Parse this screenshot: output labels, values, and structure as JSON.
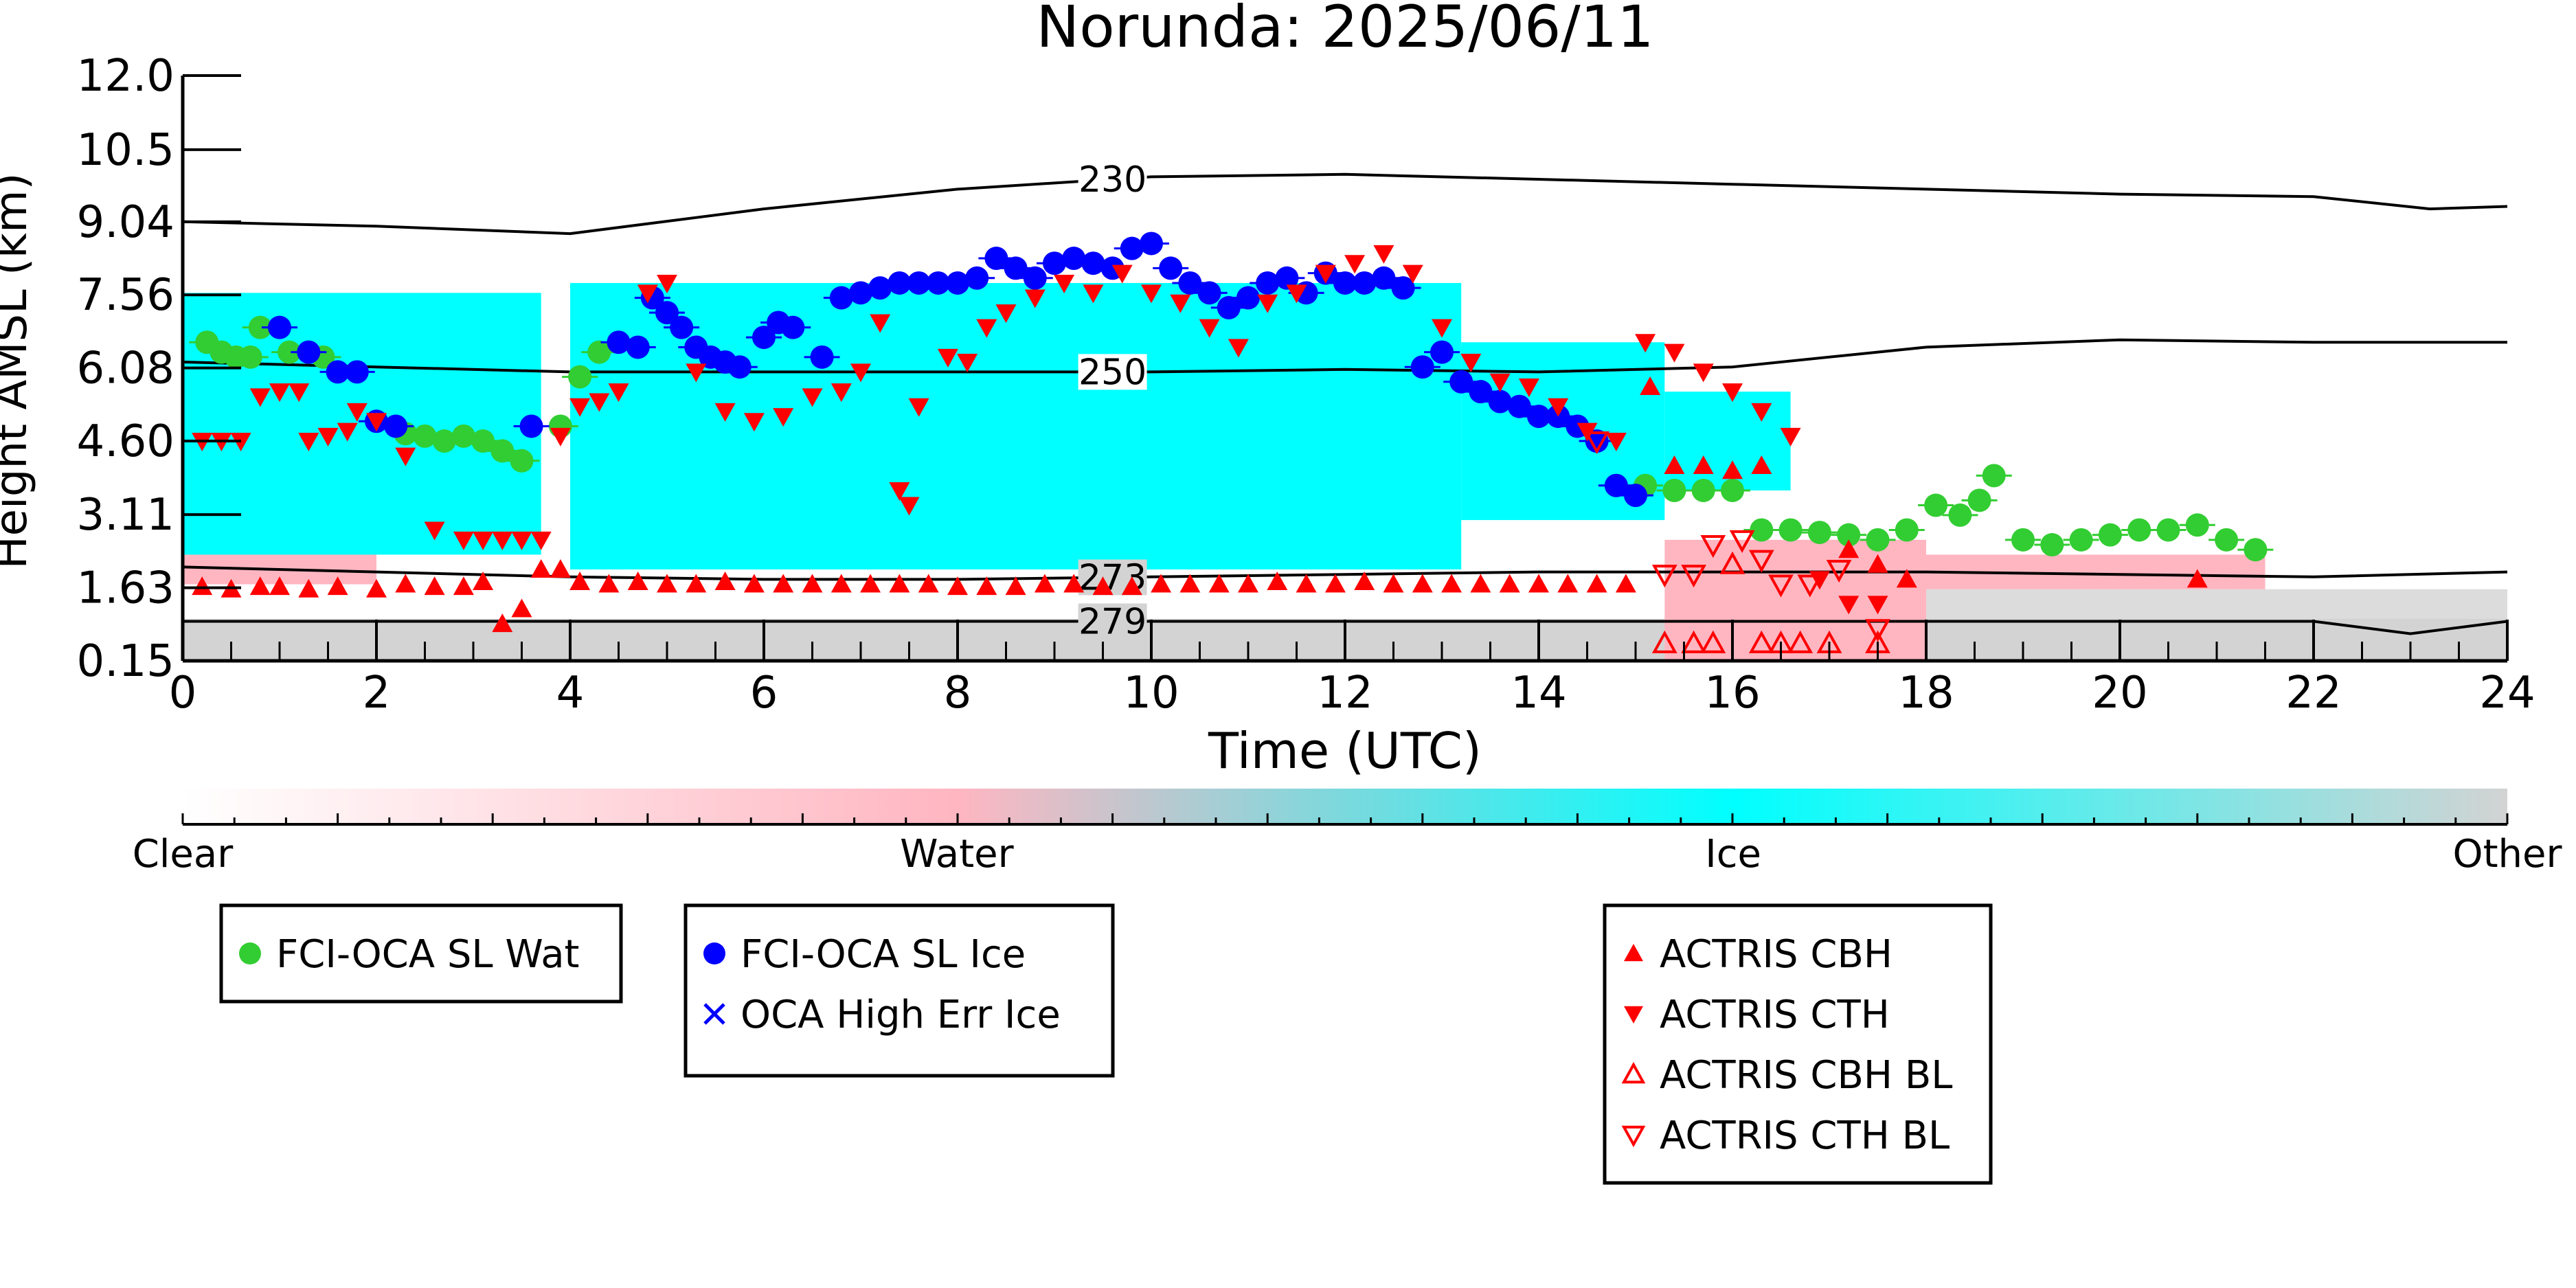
{
  "chart_data": {
    "type": "scatter",
    "title": "Norunda: 2025/06/11",
    "xlabel": "Time (UTC)",
    "ylabel": "Height AMSL (km)",
    "xlim": [
      0,
      24
    ],
    "ylim": [
      0.15,
      12.0
    ],
    "x_ticks": [
      "0",
      "2",
      "4",
      "6",
      "8",
      "10",
      "12",
      "14",
      "16",
      "18",
      "20",
      "22",
      "24"
    ],
    "y_ticks": [
      "0.15",
      "1.63",
      "3.11",
      "4.60",
      "6.08",
      "7.56",
      "9.04",
      "10.5",
      "12.0"
    ],
    "grid": false,
    "background": {
      "description_free": true,
      "ground_top_km": 1.0,
      "ice_segments": [
        {
          "x0": 0.0,
          "x1": 3.7,
          "bottom": 2.3,
          "top": 7.6
        },
        {
          "x0": 4.0,
          "x1": 13.2,
          "bottom": 2.0,
          "top": 7.8
        },
        {
          "x0": 13.2,
          "x1": 15.3,
          "bottom": 3.0,
          "top": 6.6
        },
        {
          "x0": 15.3,
          "x1": 16.6,
          "bottom": 3.6,
          "top": 5.6
        }
      ],
      "water_segments": [
        {
          "x0": 0.0,
          "x1": 2.0,
          "bottom": 1.7,
          "top": 3.1
        },
        {
          "x0": 15.3,
          "x1": 18.0,
          "bottom": 0.15,
          "top": 2.6
        },
        {
          "x0": 18.0,
          "x1": 21.5,
          "bottom": 1.6,
          "top": 2.3
        }
      ],
      "other_segments": [
        {
          "x0": 18.0,
          "x1": 24.0,
          "bottom": 0.9,
          "top": 1.6
        }
      ]
    },
    "isotherms": [
      {
        "label": "230",
        "label_x": 9.6,
        "x": [
          0,
          2,
          4,
          6,
          8,
          10,
          12,
          14,
          16,
          18,
          20,
          22,
          23.2,
          24
        ],
        "y": [
          9.04,
          8.95,
          8.8,
          9.3,
          9.7,
          9.95,
          10.0,
          9.9,
          9.8,
          9.7,
          9.6,
          9.55,
          9.3,
          9.35
        ]
      },
      {
        "label": "250",
        "label_x": 9.6,
        "x": [
          0,
          2,
          4,
          6,
          8,
          10,
          12,
          14,
          16,
          18,
          20,
          22,
          24
        ],
        "y": [
          6.2,
          6.1,
          6.0,
          6.0,
          6.0,
          6.0,
          6.05,
          6.0,
          6.1,
          6.5,
          6.65,
          6.6,
          6.6
        ]
      },
      {
        "label": "273",
        "label_x": 9.6,
        "x": [
          0,
          2,
          4,
          6,
          8,
          10,
          12,
          14,
          16,
          18,
          20,
          22,
          24
        ],
        "y": [
          2.05,
          1.95,
          1.85,
          1.8,
          1.8,
          1.85,
          1.9,
          1.95,
          1.95,
          1.95,
          1.9,
          1.85,
          1.95
        ]
      },
      {
        "label": "279",
        "label_x": 9.6,
        "x": [
          0,
          2,
          4,
          6,
          8,
          10,
          12,
          14,
          16,
          18,
          20,
          22,
          23,
          24
        ],
        "y": [
          0.95,
          0.95,
          0.95,
          0.95,
          0.95,
          0.95,
          0.95,
          0.95,
          0.95,
          0.95,
          0.95,
          0.95,
          0.7,
          0.95
        ]
      }
    ],
    "series": [
      {
        "name": "FCI-OCA SL Wat",
        "marker": "circle",
        "color": "#32cd32",
        "x": [
          0.25,
          0.4,
          0.55,
          0.7,
          0.8,
          1.1,
          1.3,
          1.45,
          2.3,
          2.5,
          2.7,
          2.9,
          3.1,
          3.3,
          3.5,
          3.9,
          4.1,
          4.3,
          14.8,
          15.1,
          15.4,
          15.7,
          16.0,
          16.3,
          16.6,
          16.9,
          17.2,
          17.5,
          17.8,
          18.1,
          18.35,
          18.55,
          18.7,
          19.0,
          19.3,
          19.6,
          19.9,
          20.2,
          20.5,
          20.8,
          21.1,
          21.4
        ],
        "y": [
          6.6,
          6.4,
          6.3,
          6.3,
          6.9,
          6.4,
          6.4,
          6.3,
          4.75,
          4.7,
          4.6,
          4.7,
          4.6,
          4.4,
          4.2,
          4.9,
          5.9,
          6.4,
          3.7,
          3.7,
          3.6,
          3.6,
          3.6,
          2.8,
          2.8,
          2.75,
          2.7,
          2.6,
          2.8,
          3.3,
          3.1,
          3.4,
          3.9,
          2.6,
          2.5,
          2.6,
          2.7,
          2.8,
          2.8,
          2.9,
          2.6,
          2.4
        ]
      },
      {
        "name": "FCI-OCA SL Ice",
        "marker": "circle",
        "color": "#0000ff",
        "x": [
          1.0,
          1.3,
          1.6,
          1.8,
          2.0,
          2.2,
          3.6,
          4.5,
          4.7,
          4.85,
          5.0,
          5.15,
          5.3,
          5.45,
          5.6,
          5.75,
          6.0,
          6.15,
          6.3,
          6.6,
          6.8,
          7.0,
          7.2,
          7.4,
          7.6,
          7.8,
          8.0,
          8.2,
          8.4,
          8.6,
          8.8,
          9.0,
          9.2,
          9.4,
          9.6,
          9.8,
          10.0,
          10.2,
          10.4,
          10.6,
          10.8,
          11.0,
          11.2,
          11.4,
          11.6,
          11.8,
          12.0,
          12.2,
          12.4,
          12.6,
          12.8,
          13.0,
          13.2,
          13.4,
          13.6,
          13.8,
          14.0,
          14.2,
          14.4,
          14.6,
          14.8,
          15.0
        ],
        "y": [
          6.9,
          6.4,
          6.0,
          6.0,
          5.0,
          4.9,
          4.9,
          6.6,
          6.5,
          7.5,
          7.2,
          6.9,
          6.5,
          6.3,
          6.2,
          6.1,
          6.7,
          7.0,
          6.9,
          6.3,
          7.5,
          7.6,
          7.7,
          7.8,
          7.8,
          7.8,
          7.8,
          7.9,
          8.3,
          8.1,
          7.9,
          8.2,
          8.3,
          8.2,
          8.1,
          8.5,
          8.6,
          8.1,
          7.8,
          7.6,
          7.3,
          7.5,
          7.8,
          7.9,
          7.6,
          8.0,
          7.8,
          7.8,
          7.9,
          7.7,
          6.1,
          6.4,
          5.8,
          5.6,
          5.4,
          5.3,
          5.1,
          5.1,
          4.9,
          4.6,
          3.7,
          3.5
        ]
      },
      {
        "name": "OCA High Err Ice",
        "marker": "x",
        "color": "#0000ff",
        "x": [],
        "y": []
      },
      {
        "name": "ACTRIS CBH",
        "marker": "triangle-up",
        "color": "#ff0000",
        "x": [
          0.2,
          0.5,
          0.8,
          1.0,
          1.3,
          1.6,
          2.0,
          2.3,
          2.6,
          2.9,
          3.1,
          3.3,
          3.5,
          3.7,
          3.9,
          4.1,
          4.4,
          4.7,
          5.0,
          5.3,
          5.6,
          5.9,
          6.2,
          6.5,
          6.8,
          7.1,
          7.4,
          7.7,
          8.0,
          8.3,
          8.6,
          8.9,
          9.2,
          9.5,
          9.8,
          10.1,
          10.4,
          10.7,
          11.0,
          11.3,
          11.6,
          11.9,
          12.2,
          12.5,
          12.8,
          13.1,
          13.4,
          13.7,
          14.0,
          14.3,
          14.6,
          14.9,
          15.15,
          15.4,
          15.7,
          16.0,
          16.3,
          17.2,
          17.5,
          17.8,
          20.8
        ],
        "y": [
          1.65,
          1.6,
          1.65,
          1.65,
          1.6,
          1.65,
          1.6,
          1.7,
          1.65,
          1.65,
          1.75,
          0.9,
          1.2,
          2.0,
          2.0,
          1.75,
          1.7,
          1.75,
          1.7,
          1.7,
          1.75,
          1.7,
          1.7,
          1.7,
          1.7,
          1.7,
          1.7,
          1.7,
          1.65,
          1.65,
          1.65,
          1.7,
          1.7,
          1.65,
          1.65,
          1.7,
          1.7,
          1.7,
          1.7,
          1.75,
          1.7,
          1.7,
          1.75,
          1.7,
          1.7,
          1.7,
          1.7,
          1.7,
          1.7,
          1.7,
          1.7,
          1.7,
          5.7,
          4.1,
          4.1,
          4.0,
          4.1,
          2.4,
          2.1,
          1.8,
          1.8
        ]
      },
      {
        "name": "ACTRIS CTH",
        "marker": "triangle-down",
        "color": "#ff0000",
        "x": [
          0.2,
          0.4,
          0.6,
          0.8,
          1.0,
          1.2,
          1.3,
          1.5,
          1.7,
          1.8,
          2.0,
          2.3,
          2.6,
          2.9,
          3.1,
          3.3,
          3.5,
          3.7,
          3.9,
          4.1,
          4.3,
          4.5,
          4.8,
          5.0,
          5.3,
          5.6,
          5.9,
          6.2,
          6.5,
          6.8,
          7.0,
          7.2,
          7.4,
          7.5,
          7.6,
          7.9,
          8.1,
          8.3,
          8.5,
          8.8,
          9.1,
          9.4,
          9.7,
          10.0,
          10.3,
          10.6,
          10.9,
          11.2,
          11.5,
          11.8,
          12.1,
          12.4,
          12.7,
          13.0,
          13.3,
          13.6,
          13.9,
          14.2,
          14.5,
          14.8,
          15.1,
          15.4,
          15.7,
          16.0,
          16.3,
          16.6,
          16.9,
          17.2,
          17.5
        ],
        "y": [
          4.6,
          4.6,
          4.6,
          5.5,
          5.6,
          5.6,
          4.6,
          4.7,
          4.8,
          5.2,
          5.0,
          4.3,
          2.8,
          2.6,
          2.6,
          2.6,
          2.6,
          2.6,
          4.7,
          5.3,
          5.4,
          5.6,
          7.6,
          7.8,
          6.0,
          5.2,
          5.0,
          5.1,
          5.5,
          5.6,
          6.0,
          7.0,
          3.6,
          3.3,
          5.3,
          6.3,
          6.2,
          6.9,
          7.2,
          7.5,
          7.8,
          7.6,
          8.0,
          7.6,
          7.4,
          6.9,
          6.5,
          7.4,
          7.6,
          8.0,
          8.2,
          8.4,
          8.0,
          6.9,
          6.2,
          5.8,
          5.7,
          5.3,
          4.8,
          4.6,
          6.6,
          6.4,
          6.0,
          5.6,
          5.2,
          4.7,
          1.8,
          1.3,
          1.3
        ]
      },
      {
        "name": "ACTRIS CBH BL",
        "marker": "triangle-up-open",
        "color": "#ff0000",
        "x": [
          15.3,
          15.6,
          15.8,
          16.0,
          16.3,
          16.5,
          16.7,
          17.0,
          17.5
        ],
        "y": [
          0.5,
          0.5,
          0.5,
          2.1,
          0.5,
          0.5,
          0.5,
          0.5,
          0.5
        ]
      },
      {
        "name": "ACTRIS CTH BL",
        "marker": "triangle-down-open",
        "color": "#ff0000",
        "x": [
          14.6,
          15.3,
          15.6,
          15.8,
          16.1,
          16.3,
          16.5,
          16.8,
          17.1,
          17.5
        ],
        "y": [
          4.6,
          1.9,
          1.9,
          2.5,
          2.6,
          2.2,
          1.7,
          1.7,
          2.0,
          0.8
        ]
      }
    ],
    "colorbar": {
      "labels": [
        "Clear",
        "Water",
        "Ice",
        "Other"
      ],
      "colors": [
        "#ffffff",
        "#ffb6c1",
        "#00ffff",
        "#d3d3d3"
      ]
    },
    "legend_boxes": [
      {
        "entries": [
          {
            "label": "FCI-OCA SL Wat",
            "marker": "circle",
            "color": "#32cd32"
          }
        ]
      },
      {
        "entries": [
          {
            "label": "FCI-OCA SL Ice",
            "marker": "circle",
            "color": "#0000ff"
          },
          {
            "label": "OCA High Err Ice",
            "marker": "x",
            "color": "#0000ff"
          }
        ]
      },
      {
        "entries": [
          {
            "label": "ACTRIS CBH",
            "marker": "triangle-up",
            "color": "#ff0000"
          },
          {
            "label": "ACTRIS CTH",
            "marker": "triangle-down",
            "color": "#ff0000"
          },
          {
            "label": "ACTRIS CBH BL",
            "marker": "triangle-up-open",
            "color": "#ff0000"
          },
          {
            "label": "ACTRIS CTH BL",
            "marker": "triangle-down-open",
            "color": "#ff0000"
          }
        ]
      }
    ],
    "legend_placement": "below",
    "colors": {
      "ice": "#00ffff",
      "water": "#ffb6c1",
      "other": "#d3d3d3",
      "isotherm": "#000000"
    }
  }
}
